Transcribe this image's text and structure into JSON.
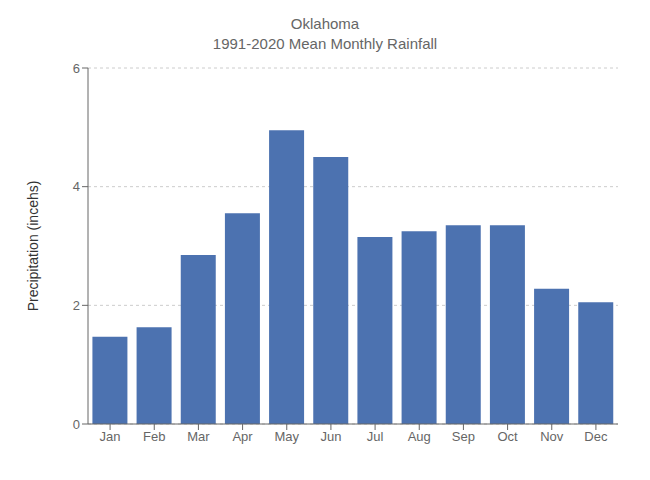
{
  "chart_data": {
    "type": "bar",
    "title": "Oklahoma",
    "subtitle": "1991-2020 Mean Monthly Rainfall",
    "categories": [
      "Jan",
      "Feb",
      "Mar",
      "Apr",
      "May",
      "Jun",
      "Jul",
      "Aug",
      "Sep",
      "Oct",
      "Nov",
      "Dec"
    ],
    "values": [
      1.47,
      1.63,
      2.85,
      3.55,
      4.95,
      4.5,
      3.15,
      3.25,
      3.35,
      3.35,
      2.28,
      2.05
    ],
    "color": "#4C72B0",
    "ylabel": "Precipitation (incehs)",
    "ylim": [
      0,
      6
    ],
    "yticks": [
      0,
      2,
      4,
      6
    ],
    "grid": true
  }
}
